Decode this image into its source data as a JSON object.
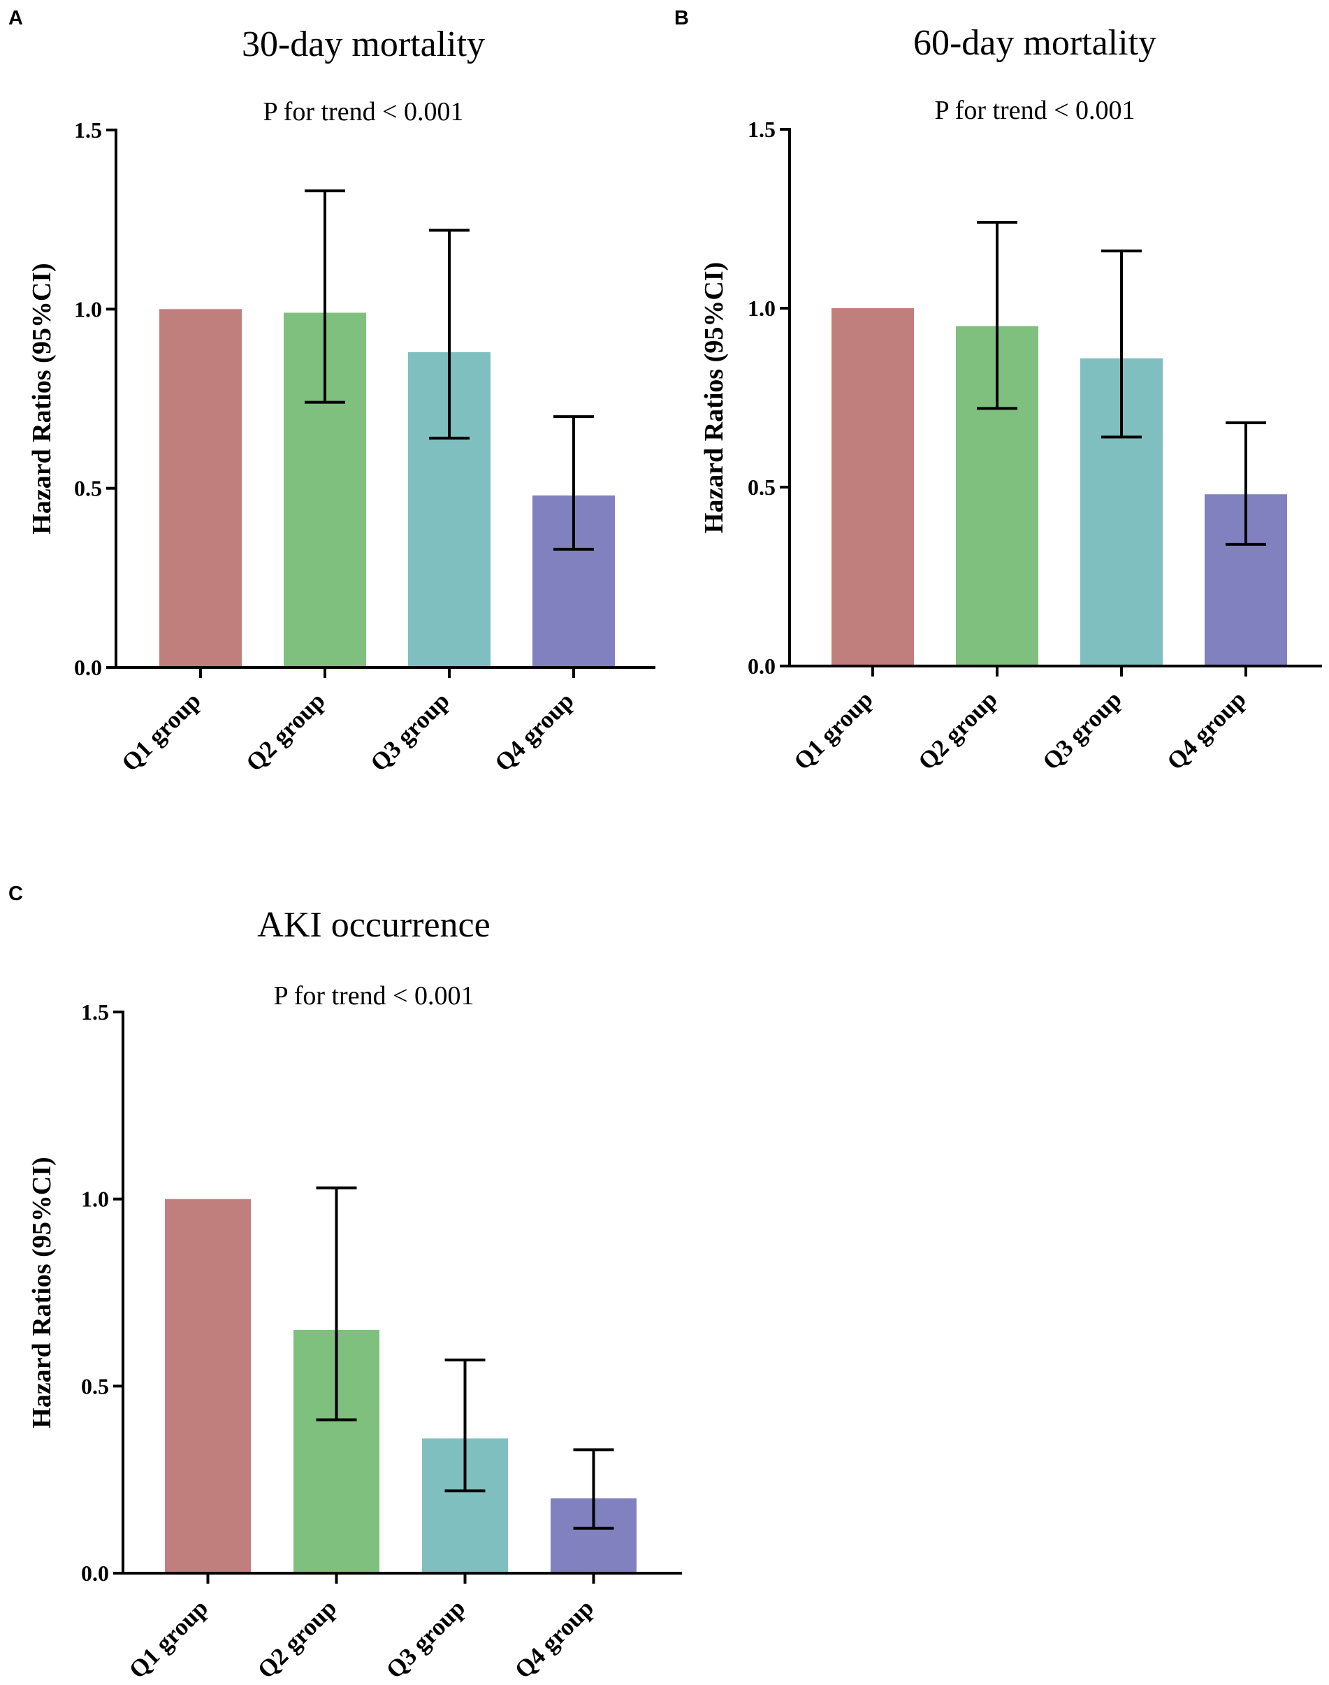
{
  "chart_data": [
    {
      "panel": "A",
      "type": "bar",
      "title": "30-day mortality",
      "subtitle": "P for trend < 0.001",
      "ylabel": "Hazard Ratios (95%CI)",
      "xlabel": "",
      "ylim": [
        0,
        1.5
      ],
      "yticks": [
        "0.0",
        "0.5",
        "1.0",
        "1.5"
      ],
      "categories": [
        "Q1 group",
        "Q2 group",
        "Q3 group",
        "Q4 group"
      ],
      "values": [
        1.0,
        0.99,
        0.88,
        0.48
      ],
      "ci_lower": [
        null,
        0.74,
        0.64,
        0.33
      ],
      "ci_upper": [
        null,
        1.33,
        1.22,
        0.7
      ],
      "colors": [
        "#c07e7c",
        "#7fc07f",
        "#7fbfbf",
        "#8181bf"
      ]
    },
    {
      "panel": "B",
      "type": "bar",
      "title": "60-day mortality",
      "subtitle": "P for trend < 0.001",
      "ylabel": "Hazard Ratios (95%CI)",
      "xlabel": "",
      "ylim": [
        0,
        1.5
      ],
      "yticks": [
        "0.0",
        "0.5",
        "1.0",
        "1.5"
      ],
      "categories": [
        "Q1 group",
        "Q2 group",
        "Q3 group",
        "Q4 group"
      ],
      "values": [
        1.0,
        0.95,
        0.86,
        0.48
      ],
      "ci_lower": [
        null,
        0.72,
        0.64,
        0.34
      ],
      "ci_upper": [
        null,
        1.24,
        1.16,
        0.68
      ],
      "colors": [
        "#c07e7c",
        "#7fc07f",
        "#7fbfbf",
        "#8181bf"
      ]
    },
    {
      "panel": "C",
      "type": "bar",
      "title": "AKI occurrence",
      "subtitle": "P for trend < 0.001",
      "ylabel": "Hazard Ratios (95%CI)",
      "xlabel": "",
      "ylim": [
        0,
        1.5
      ],
      "yticks": [
        "0.0",
        "0.5",
        "1.0",
        "1.5"
      ],
      "categories": [
        "Q1 group",
        "Q2 group",
        "Q3 group",
        "Q4 group"
      ],
      "values": [
        1.0,
        0.65,
        0.36,
        0.2
      ],
      "ci_lower": [
        null,
        0.41,
        0.22,
        0.12
      ],
      "ci_upper": [
        null,
        1.03,
        0.57,
        0.33
      ],
      "colors": [
        "#c07e7c",
        "#7fc07f",
        "#7fbfbf",
        "#8181bf"
      ]
    }
  ]
}
